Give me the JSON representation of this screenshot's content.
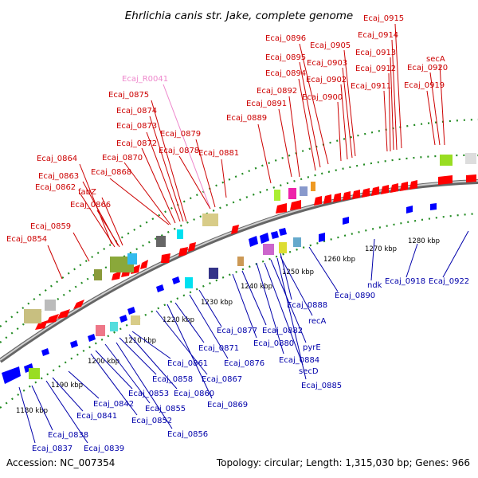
{
  "title": "Ehrlichia canis str. Jake, complete genome",
  "footer": {
    "accession": "Accession: NC_007354",
    "summary": "Topology: circular; Length: 1,315,030 bp; Genes: 966"
  },
  "colors": {
    "top_label": "#cc0000",
    "rna_label": "#ee88cc",
    "bottom_label": "#0000aa",
    "plus_arrow": "#ff0000",
    "minus_arrow": "#0000ff",
    "backbone": "#888888",
    "dots": "#228b22"
  },
  "ticks": [
    "1180 kbp",
    "1190 kbp",
    "1200 kbp",
    "1210 kbp",
    "1220 kbp",
    "1230 kbp",
    "1240 kbp",
    "1250 kbp",
    "1260 kbp",
    "1270 kbp",
    "1280 kbp"
  ],
  "top_labels": [
    {
      "text": "Ecaj_0854",
      "kind": "gene"
    },
    {
      "text": "Ecaj_0859",
      "kind": "gene"
    },
    {
      "text": "Ecaj_0866",
      "kind": "gene"
    },
    {
      "text": "fabZ",
      "kind": "gene"
    },
    {
      "text": "Ecaj_0862",
      "kind": "gene"
    },
    {
      "text": "Ecaj_0863",
      "kind": "gene"
    },
    {
      "text": "Ecaj_0864",
      "kind": "gene"
    },
    {
      "text": "Ecaj_0868",
      "kind": "gene"
    },
    {
      "text": "Ecaj_0870",
      "kind": "gene"
    },
    {
      "text": "Ecaj_0872",
      "kind": "gene"
    },
    {
      "text": "Ecaj_0873",
      "kind": "gene"
    },
    {
      "text": "Ecaj_0874",
      "kind": "gene"
    },
    {
      "text": "Ecaj_0875",
      "kind": "gene"
    },
    {
      "text": "Ecaj_R0041",
      "kind": "rna"
    },
    {
      "text": "Ecaj_0878",
      "kind": "gene"
    },
    {
      "text": "Ecaj_0879",
      "kind": "gene"
    },
    {
      "text": "Ecaj_0881",
      "kind": "gene"
    },
    {
      "text": "Ecaj_0889",
      "kind": "gene"
    },
    {
      "text": "Ecaj_0891",
      "kind": "gene"
    },
    {
      "text": "Ecaj_0892",
      "kind": "gene"
    },
    {
      "text": "Ecaj_0894",
      "kind": "gene"
    },
    {
      "text": "Ecaj_0895",
      "kind": "gene"
    },
    {
      "text": "Ecaj_0896",
      "kind": "gene"
    },
    {
      "text": "Ecaj_0900",
      "kind": "gene"
    },
    {
      "text": "Ecaj_0902",
      "kind": "gene"
    },
    {
      "text": "Ecaj_0903",
      "kind": "gene"
    },
    {
      "text": "Ecaj_0905",
      "kind": "gene"
    },
    {
      "text": "Ecaj_0911",
      "kind": "gene"
    },
    {
      "text": "Ecaj_0912",
      "kind": "gene"
    },
    {
      "text": "Ecaj_0913",
      "kind": "gene"
    },
    {
      "text": "Ecaj_0914",
      "kind": "gene"
    },
    {
      "text": "Ecaj_0915",
      "kind": "gene"
    },
    {
      "text": "Ecaj_0919",
      "kind": "gene"
    },
    {
      "text": "Ecaj_0920",
      "kind": "gene"
    },
    {
      "text": "secA",
      "kind": "gene"
    }
  ],
  "bottom_labels": [
    "Ecaj_0837",
    "Ecaj_0838",
    "Ecaj_0839",
    "Ecaj_0841",
    "Ecaj_0842",
    "Ecaj_0852",
    "Ecaj_0853",
    "Ecaj_0855",
    "Ecaj_0856",
    "Ecaj_0858",
    "Ecaj_0860",
    "Ecaj_0861",
    "Ecaj_0867",
    "Ecaj_0869",
    "Ecaj_0871",
    "Ecaj_0876",
    "Ecaj_0877",
    "Ecaj_0880",
    "Ecaj_0882",
    "Ecaj_0884",
    "secD",
    "pyrE",
    "Ecaj_0885",
    "recA",
    "Ecaj_0888",
    "Ecaj_0890",
    "ndk",
    "Ecaj_0918",
    "Ecaj_0922"
  ]
}
